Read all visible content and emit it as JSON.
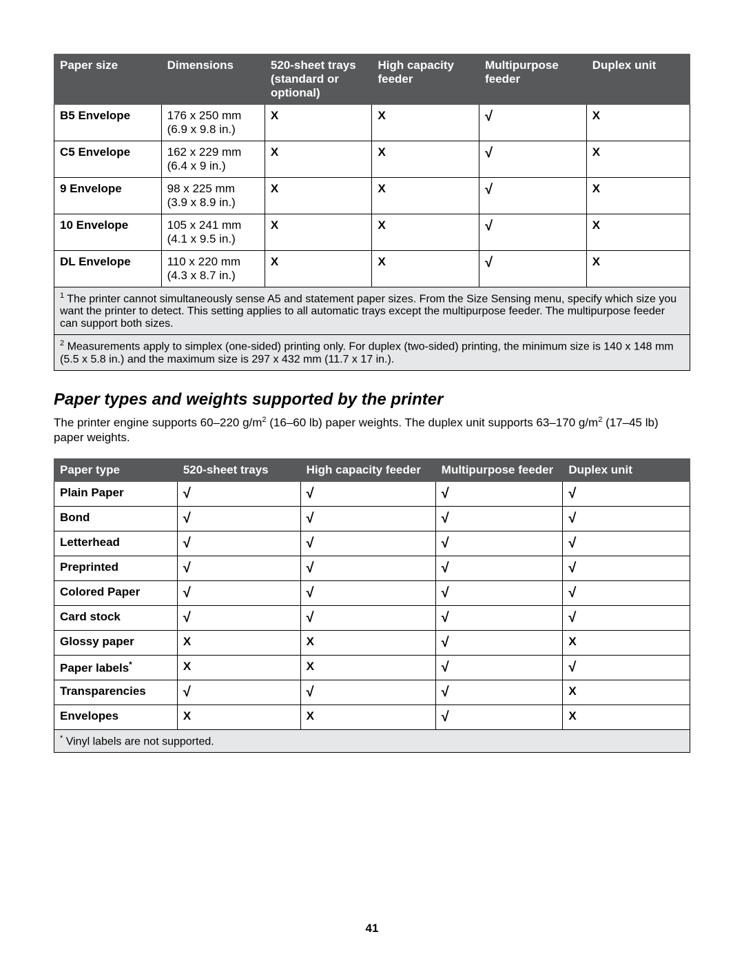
{
  "table1": {
    "headers": [
      "Paper size",
      "Dimensions",
      "520-sheet trays (standard or optional)",
      "High capacity feeder",
      "Multipurpose feeder",
      "Duplex unit"
    ],
    "col_widths_pct": [
      14.5,
      14,
      14.5,
      14.5,
      14.5,
      14
    ],
    "check_glyph": "√",
    "x_glyph": "X",
    "rows": [
      {
        "label": "B5 Envelope",
        "dim_mm": "176 x 250 mm",
        "dim_in": "(6.9 x 9.8 in.)",
        "cells": [
          "X",
          "X",
          "√",
          "X"
        ]
      },
      {
        "label": "C5 Envelope",
        "dim_mm": "162 x 229 mm",
        "dim_in": "(6.4 x 9 in.)",
        "cells": [
          "X",
          "X",
          "√",
          "X"
        ]
      },
      {
        "label": "9 Envelope",
        "dim_mm": "98 x 225 mm",
        "dim_in": "(3.9 x 8.9 in.)",
        "cells": [
          "X",
          "X",
          "√",
          "X"
        ]
      },
      {
        "label": "10 Envelope",
        "dim_mm": "105 x 241 mm",
        "dim_in": "(4.1 x 9.5 in.)",
        "cells": [
          "X",
          "X",
          "√",
          "X"
        ]
      },
      {
        "label": "DL Envelope",
        "dim_mm": "110 x 220 mm",
        "dim_in": "(4.3 x 8.7 in.)",
        "cells": [
          "X",
          "X",
          "√",
          "X"
        ]
      }
    ],
    "footnotes": [
      {
        "sup": "1",
        "text": "The printer cannot simultaneously sense A5 and statement paper sizes. From the Size Sensing menu, specify which size you want the printer to detect. This setting applies to all automatic trays except the multipurpose feeder. The multipurpose feeder can support both sizes."
      },
      {
        "sup": "2",
        "text": "Measurements apply to simplex (one-sided) printing only. For duplex (two-sided) printing, the minimum size is 140 x 148 mm (5.5 x 5.8 in.) and the maximum size is 297 x 432 mm (11.7 x 17 in.)."
      }
    ]
  },
  "section": {
    "title": "Paper types and weights supported by the printer",
    "intro_pre": "The printer engine supports 60–220 g/m",
    "intro_mid": " (16–60 lb) paper weights. The duplex unit supports 63–170 g/m",
    "intro_post": " (17–45 lb) paper weights.",
    "sup": "2"
  },
  "table2": {
    "headers": [
      "Paper type",
      "520-sheet trays",
      "High capacity feeder",
      "Multipurpose feeder",
      "Duplex unit"
    ],
    "col_widths_pct": [
      15.5,
      15.5,
      17,
      16,
      16
    ],
    "check_glyph": "√",
    "x_glyph": "X",
    "rows": [
      {
        "label": "Plain Paper",
        "star": false,
        "cells": [
          "√",
          "√",
          "√",
          "√"
        ]
      },
      {
        "label": "Bond",
        "star": false,
        "cells": [
          "√",
          "√",
          "√",
          "√"
        ]
      },
      {
        "label": "Letterhead",
        "star": false,
        "cells": [
          "√",
          "√",
          "√",
          "√"
        ]
      },
      {
        "label": "Preprinted",
        "star": false,
        "cells": [
          "√",
          "√",
          "√",
          "√"
        ]
      },
      {
        "label": "Colored Paper",
        "star": false,
        "cells": [
          "√",
          "√",
          "√",
          "√"
        ]
      },
      {
        "label": "Card stock",
        "star": false,
        "cells": [
          "√",
          "√",
          "√",
          "√"
        ]
      },
      {
        "label": "Glossy paper",
        "star": false,
        "cells": [
          "X",
          "X",
          "√",
          "X"
        ]
      },
      {
        "label": "Paper labels",
        "star": true,
        "cells": [
          "X",
          "X",
          "√",
          "√"
        ]
      },
      {
        "label": "Transparencies",
        "star": false,
        "cells": [
          "√",
          "√",
          "√",
          "X"
        ]
      },
      {
        "label": "Envelopes",
        "star": false,
        "cells": [
          "X",
          "X",
          "√",
          "X"
        ]
      }
    ],
    "footnote": {
      "sup": "*",
      "text": "Vinyl labels are not supported."
    }
  },
  "page_number": "41"
}
